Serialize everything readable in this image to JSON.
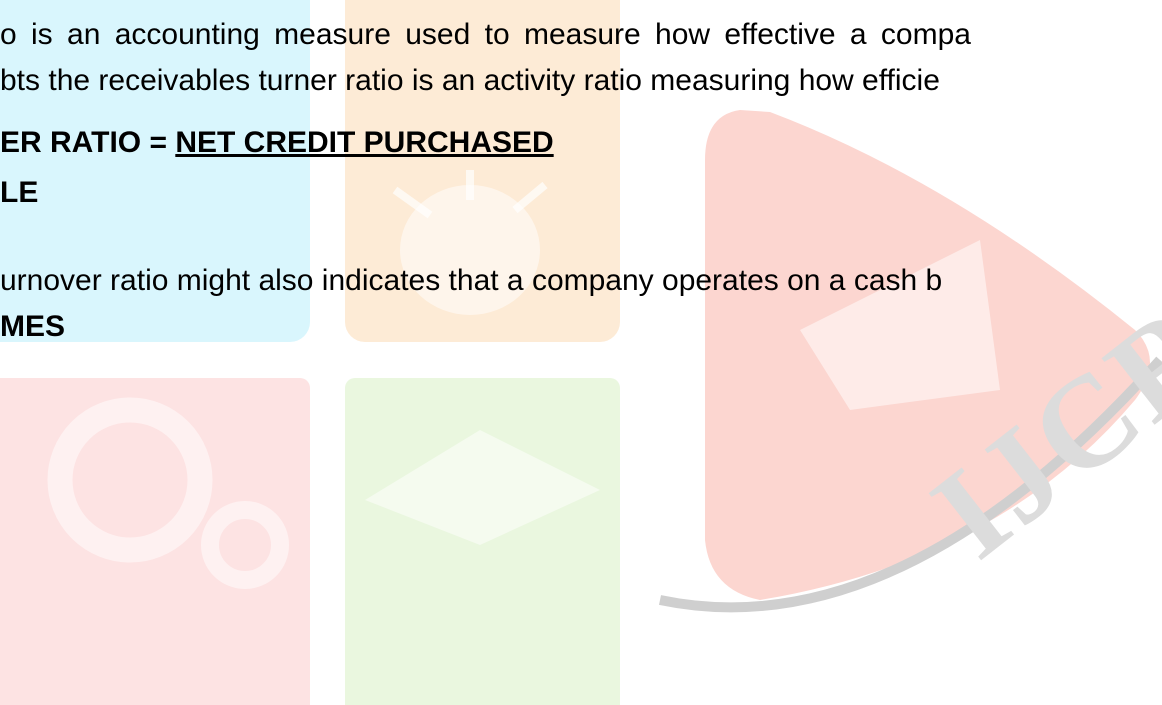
{
  "lines": [
    "o is an accounting measure used to measure how effective a compa",
    "bts the receivables turner ratio is an activity ratio measuring how efficie",
    "urnover ratio might also indicates that a company operates on a cash b"
  ],
  "formula": {
    "left": "ER RATIO = ",
    "numerator": "NET CREDIT PURCHASED",
    "denominator": "LE"
  },
  "heading": "MES",
  "watermark": "IJCRT"
}
